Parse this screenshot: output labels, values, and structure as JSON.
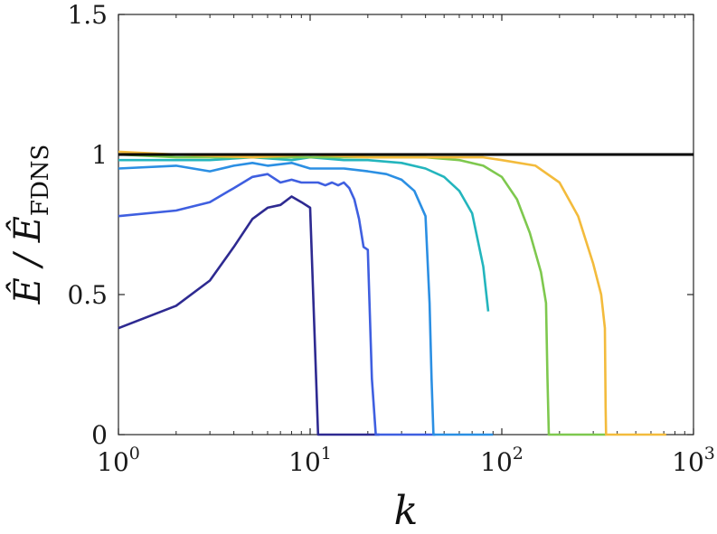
{
  "chart_data": {
    "type": "line",
    "xscale": "log",
    "xlim": [
      1,
      1000
    ],
    "ylim": [
      0,
      1.5
    ],
    "xlabel": "k",
    "ylabel": {
      "main": "Ê / Ê",
      "subscript": "FDNS"
    },
    "grid": false,
    "legend": "none",
    "x_ticks": [
      {
        "base": "10",
        "exp": "0",
        "value": 1
      },
      {
        "base": "10",
        "exp": "1",
        "value": 10
      },
      {
        "base": "10",
        "exp": "2",
        "value": 100
      },
      {
        "base": "10",
        "exp": "3",
        "value": 1000
      }
    ],
    "y_ticks": [
      {
        "label": "0",
        "value": 0
      },
      {
        "label": "0.5",
        "value": 0.5
      },
      {
        "label": "1",
        "value": 1
      },
      {
        "label": "1.5",
        "value": 1.5
      }
    ],
    "reference_line": {
      "y": 1,
      "color": "#000000"
    },
    "series": [
      {
        "color": "#2e2a91",
        "points": [
          [
            1,
            0.38
          ],
          [
            2,
            0.46
          ],
          [
            3,
            0.55
          ],
          [
            4,
            0.67
          ],
          [
            5,
            0.77
          ],
          [
            6,
            0.81
          ],
          [
            7,
            0.82
          ],
          [
            8,
            0.85
          ],
          [
            9,
            0.83
          ],
          [
            10,
            0.81
          ],
          [
            11,
            0
          ],
          [
            23,
            0
          ]
        ]
      },
      {
        "color": "#3f5fe0",
        "points": [
          [
            1,
            0.78
          ],
          [
            2,
            0.8
          ],
          [
            3,
            0.83
          ],
          [
            4,
            0.88
          ],
          [
            5,
            0.92
          ],
          [
            6,
            0.93
          ],
          [
            7,
            0.9
          ],
          [
            8,
            0.91
          ],
          [
            9,
            0.9
          ],
          [
            10,
            0.9
          ],
          [
            11,
            0.9
          ],
          [
            12,
            0.89
          ],
          [
            13,
            0.9
          ],
          [
            14,
            0.89
          ],
          [
            15,
            0.9
          ],
          [
            16,
            0.88
          ],
          [
            17,
            0.84
          ],
          [
            18,
            0.77
          ],
          [
            19,
            0.67
          ],
          [
            20,
            0.66
          ],
          [
            21,
            0.2
          ],
          [
            22,
            0
          ],
          [
            45,
            0
          ]
        ]
      },
      {
        "color": "#2b8fe3",
        "points": [
          [
            1,
            0.95
          ],
          [
            2,
            0.96
          ],
          [
            3,
            0.94
          ],
          [
            4,
            0.96
          ],
          [
            5,
            0.97
          ],
          [
            6,
            0.96
          ],
          [
            8,
            0.97
          ],
          [
            10,
            0.95
          ],
          [
            12,
            0.95
          ],
          [
            15,
            0.95
          ],
          [
            20,
            0.94
          ],
          [
            25,
            0.93
          ],
          [
            30,
            0.91
          ],
          [
            35,
            0.87
          ],
          [
            40,
            0.78
          ],
          [
            42,
            0.47
          ],
          [
            43,
            0.2
          ],
          [
            44,
            0
          ],
          [
            90,
            0
          ]
        ]
      },
      {
        "color": "#23b5bd",
        "points": [
          [
            1,
            0.98
          ],
          [
            2,
            0.98
          ],
          [
            3,
            0.98
          ],
          [
            5,
            0.99
          ],
          [
            8,
            0.98
          ],
          [
            10,
            0.99
          ],
          [
            15,
            0.98
          ],
          [
            20,
            0.98
          ],
          [
            30,
            0.97
          ],
          [
            40,
            0.95
          ],
          [
            50,
            0.92
          ],
          [
            60,
            0.87
          ],
          [
            70,
            0.79
          ],
          [
            80,
            0.6
          ],
          [
            85,
            0.44
          ]
        ]
      },
      {
        "color": "#7ec84e",
        "points": [
          [
            1,
            1.0
          ],
          [
            2,
            0.99
          ],
          [
            5,
            0.99
          ],
          [
            10,
            0.99
          ],
          [
            20,
            0.99
          ],
          [
            40,
            0.99
          ],
          [
            60,
            0.98
          ],
          [
            80,
            0.96
          ],
          [
            100,
            0.92
          ],
          [
            120,
            0.84
          ],
          [
            140,
            0.72
          ],
          [
            160,
            0.58
          ],
          [
            170,
            0.47
          ],
          [
            173,
            0.2
          ],
          [
            176,
            0
          ],
          [
            350,
            0
          ]
        ]
      },
      {
        "color": "#f3bb3c",
        "points": [
          [
            1,
            1.01
          ],
          [
            2,
            1.0
          ],
          [
            5,
            0.99
          ],
          [
            10,
            1.0
          ],
          [
            20,
            0.99
          ],
          [
            40,
            0.99
          ],
          [
            60,
            0.99
          ],
          [
            80,
            0.99
          ],
          [
            100,
            0.98
          ],
          [
            150,
            0.96
          ],
          [
            200,
            0.9
          ],
          [
            250,
            0.78
          ],
          [
            300,
            0.61
          ],
          [
            330,
            0.5
          ],
          [
            345,
            0.38
          ],
          [
            348,
            0.1
          ],
          [
            350,
            0
          ],
          [
            720,
            0
          ]
        ]
      }
    ]
  }
}
